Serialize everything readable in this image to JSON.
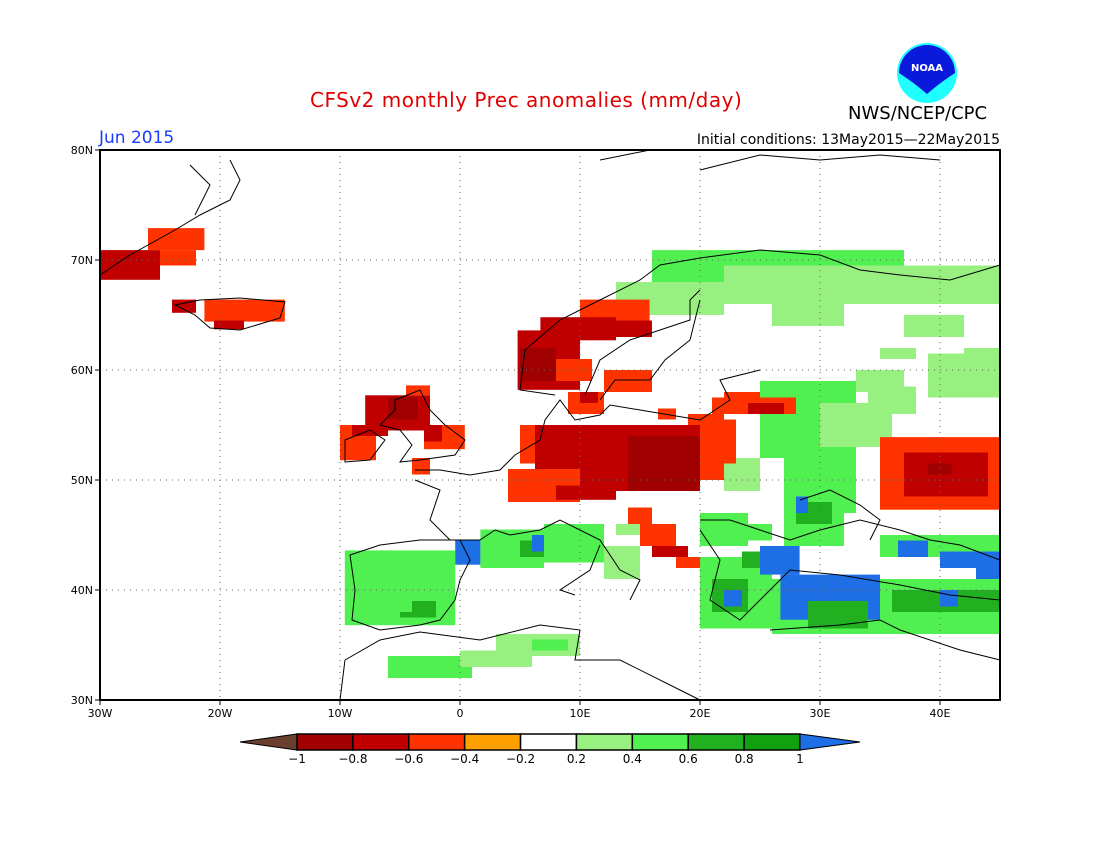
{
  "header": {
    "title": "CFSv2 monthly Prec anomalies (mm/day)",
    "org": "NWS/NCEP/CPC",
    "month": "Jun 2015",
    "initial_conditions": "Initial conditions: 13May2015—22May2015",
    "logo_text": "NOAA"
  },
  "map": {
    "lon_range": [
      -30,
      45
    ],
    "lat_range": [
      30,
      80
    ],
    "lat_ticks": [
      {
        "v": 80,
        "label": "80N"
      },
      {
        "v": 70,
        "label": "70N"
      },
      {
        "v": 60,
        "label": "60N"
      },
      {
        "v": 50,
        "label": "50N"
      },
      {
        "v": 40,
        "label": "40N"
      },
      {
        "v": 30,
        "label": "30N"
      }
    ],
    "lon_ticks": [
      {
        "v": -30,
        "label": "30W"
      },
      {
        "v": -20,
        "label": "20W"
      },
      {
        "v": -10,
        "label": "10W"
      },
      {
        "v": 0,
        "label": "0"
      },
      {
        "v": 10,
        "label": "10E"
      },
      {
        "v": 20,
        "label": "20E"
      },
      {
        "v": 30,
        "label": "30E"
      },
      {
        "v": 40,
        "label": "40E"
      }
    ],
    "anomaly_cells": [
      [
        -30,
        68.2,
        -25,
        70.9,
        -0.7
      ],
      [
        -26,
        70.9,
        -21.3,
        72.9,
        -0.5
      ],
      [
        -25,
        69.5,
        -22,
        70.9,
        -0.5
      ],
      [
        -21.3,
        64.4,
        -14.6,
        66.4,
        -0.5
      ],
      [
        -24,
        65.2,
        -22,
        66.4,
        -0.7
      ],
      [
        -20.5,
        63.7,
        -18,
        64.5,
        -0.7
      ],
      [
        16,
        66.4,
        37,
        70.9,
        0.5
      ],
      [
        13,
        65,
        22,
        68,
        0.3
      ],
      [
        22,
        66,
        45,
        69.5,
        0.3
      ],
      [
        26,
        64,
        32,
        66,
        0.3
      ],
      [
        37,
        63,
        42,
        65,
        0.3
      ],
      [
        35,
        61,
        38,
        62,
        0.3
      ],
      [
        42,
        61,
        45,
        62,
        0.3
      ],
      [
        39,
        57.5,
        45,
        61.5,
        0.3
      ],
      [
        33,
        58,
        37,
        60,
        0.3
      ],
      [
        25,
        52,
        33,
        59,
        0.4
      ],
      [
        27,
        47,
        33,
        54,
        0.5
      ],
      [
        22,
        49,
        25,
        52,
        0.3
      ],
      [
        34,
        56,
        38,
        58.5,
        0.3
      ],
      [
        30,
        53,
        36,
        57,
        0.3
      ],
      [
        12,
        58,
        16,
        60,
        -0.5
      ],
      [
        9,
        56,
        12,
        58,
        -0.5
      ],
      [
        10,
        57,
        11.5,
        58,
        -0.7
      ],
      [
        10,
        64,
        15.8,
        66.4,
        -0.5
      ],
      [
        13,
        63,
        16,
        64.5,
        -0.7
      ],
      [
        6.7,
        62.7,
        13,
        64.8,
        -0.7
      ],
      [
        4.8,
        58.2,
        10,
        63.6,
        -0.7
      ],
      [
        5,
        59,
        8,
        62,
        -0.9
      ],
      [
        8,
        59,
        11,
        61,
        -0.5
      ],
      [
        22,
        57,
        25,
        58,
        -0.5
      ],
      [
        21,
        56,
        28,
        57.5,
        -0.5
      ],
      [
        24,
        56,
        27,
        57,
        -0.7
      ],
      [
        19,
        55,
        22,
        56,
        -0.5
      ],
      [
        16.5,
        55.5,
        18,
        56.5,
        -0.5
      ],
      [
        -4.5,
        57.7,
        -2.5,
        58.6,
        -0.5
      ],
      [
        -7.9,
        54.5,
        -2.5,
        57.7,
        -0.7
      ],
      [
        -6,
        55.5,
        -3.5,
        57.5,
        -0.9
      ],
      [
        -10,
        51.8,
        -7,
        55,
        -0.5
      ],
      [
        -9,
        54,
        -6,
        55,
        -0.7
      ],
      [
        -3,
        52.8,
        0.4,
        55,
        -0.5
      ],
      [
        -3,
        53.5,
        -1.5,
        55,
        -0.7
      ],
      [
        -4,
        50.5,
        -2.5,
        52,
        -0.5
      ],
      [
        5,
        51.5,
        23,
        55,
        -0.5
      ],
      [
        6.25,
        49,
        20,
        55,
        -0.7
      ],
      [
        14,
        49,
        20,
        54,
        -0.9
      ],
      [
        4,
        48,
        10,
        51,
        -0.5
      ],
      [
        8,
        48.2,
        13,
        49.5,
        -0.7
      ],
      [
        20,
        50,
        22,
        52,
        -0.5
      ],
      [
        20,
        54,
        23,
        55.5,
        -0.5
      ],
      [
        14,
        46,
        16,
        47.5,
        -0.5
      ],
      [
        15,
        44,
        18,
        46,
        -0.5
      ],
      [
        16,
        43,
        19,
        44,
        -0.7
      ],
      [
        18,
        42,
        20,
        43,
        -0.5
      ],
      [
        35,
        47.3,
        45,
        53.9,
        -0.5
      ],
      [
        37,
        48.5,
        44,
        52.5,
        -0.7
      ],
      [
        39,
        50.5,
        41,
        51.5,
        -0.9
      ],
      [
        -9.6,
        36.8,
        -0.4,
        43.6,
        0.4
      ],
      [
        -9,
        41,
        -3,
        42,
        0.5
      ],
      [
        -5,
        37.5,
        -2,
        39,
        0.7
      ],
      [
        -6,
        38,
        -4,
        39.5,
        0.5
      ],
      [
        -0.4,
        42.3,
        1.7,
        44.5,
        1.1
      ],
      [
        1.7,
        42,
        7,
        45.5,
        0.5
      ],
      [
        5,
        43,
        7,
        44.5,
        0.7
      ],
      [
        6,
        43.5,
        8,
        45,
        1.1
      ],
      [
        7,
        42.5,
        12,
        46,
        0.4
      ],
      [
        -6,
        32,
        1,
        34,
        0.4
      ],
      [
        0,
        33,
        6,
        34.5,
        0.3
      ],
      [
        3,
        34,
        10,
        36,
        0.3
      ],
      [
        6,
        34.5,
        9,
        35.5,
        0.5
      ],
      [
        13,
        45,
        15,
        46,
        0.3
      ],
      [
        12,
        41,
        15,
        44,
        0.3
      ],
      [
        20,
        44,
        24,
        47,
        0.4
      ],
      [
        22,
        44.5,
        26,
        46,
        0.5
      ],
      [
        27,
        44,
        32,
        50,
        0.4
      ],
      [
        28,
        46,
        31,
        48,
        0.7
      ],
      [
        28,
        47,
        29,
        48.5,
        1.1
      ],
      [
        20,
        36.5,
        26,
        43,
        0.5
      ],
      [
        21,
        38,
        24,
        41,
        0.7
      ],
      [
        22,
        38.5,
        23.5,
        40,
        1.1
      ],
      [
        25,
        41.4,
        28.3,
        44,
        1.1
      ],
      [
        23.5,
        42,
        25,
        43.5,
        0.7
      ],
      [
        26,
        36,
        45,
        41,
        0.5
      ],
      [
        26.7,
        37.3,
        35,
        41.4,
        1.1
      ],
      [
        29,
        36.5,
        34,
        39,
        0.7
      ],
      [
        36,
        38,
        45,
        40,
        0.7
      ],
      [
        40,
        38.5,
        41.5,
        40,
        1.1
      ],
      [
        35,
        43,
        45,
        45,
        0.4
      ],
      [
        36.5,
        43,
        39,
        44.5,
        1.1
      ],
      [
        40,
        42,
        45,
        43.5,
        1.1
      ],
      [
        43,
        41,
        45,
        42.5,
        1.1
      ]
    ]
  },
  "colorbar": {
    "labels": [
      "−1",
      "−0.8",
      "−0.6",
      "−0.4",
      "−0.2",
      "0.2",
      "0.4",
      "0.6",
      "0.8",
      "1"
    ],
    "colors": [
      "#6b3f2f",
      "#a00000",
      "#c00000",
      "#ff3300",
      "#ffa000",
      "#ffffff",
      "#98f080",
      "#50f050",
      "#20b020",
      "#10a010",
      "#1e6ee6"
    ]
  }
}
